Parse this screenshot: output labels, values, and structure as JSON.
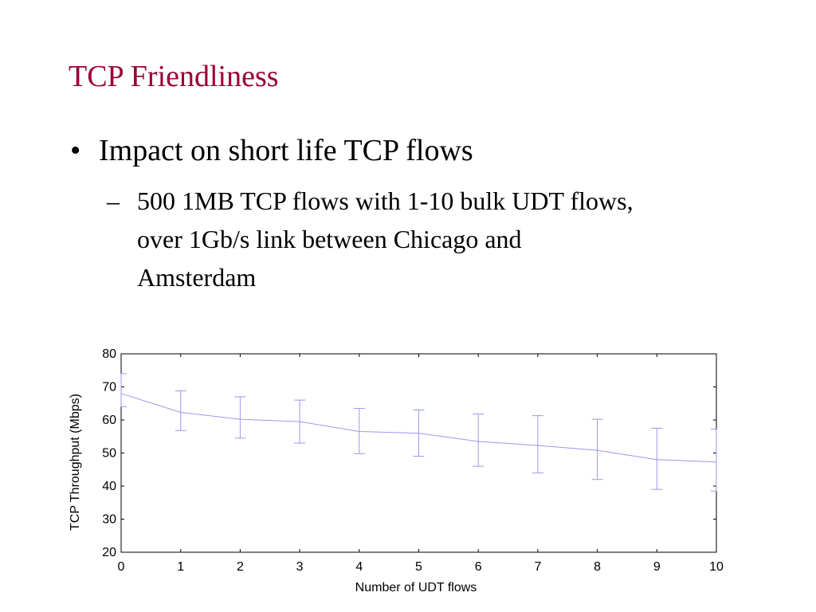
{
  "slide": {
    "title": "TCP Friendliness",
    "bullet_1": "Impact on short life TCP flows",
    "bullet_1_marker": "•",
    "bullet_2_marker": "–",
    "bullet_2_lines": [
      "500 1MB TCP flows with 1-10 bulk UDT flows,",
      "over 1Gb/s link between Chicago and",
      "Amsterdam"
    ]
  },
  "chart_data": {
    "type": "line",
    "title": "",
    "xlabel": "Number of UDT flows",
    "ylabel": "TCP Throughput (Mbps)",
    "xlim": [
      0,
      10
    ],
    "ylim": [
      20,
      80
    ],
    "x_ticks": [
      0,
      1,
      2,
      3,
      4,
      5,
      6,
      7,
      8,
      9,
      10
    ],
    "y_ticks": [
      20,
      30,
      40,
      50,
      60,
      70,
      80
    ],
    "grid": false,
    "series": [
      {
        "x": [
          0,
          1,
          2,
          3,
          4,
          5,
          6,
          7,
          8,
          9,
          10
        ],
        "values": [
          68,
          62.3,
          60.2,
          59.5,
          56.5,
          56,
          53.5,
          52.3,
          50.8,
          48,
          47.3
        ],
        "error_low": [
          64,
          56.8,
          54.5,
          53,
          49.8,
          49,
          46,
          44,
          42,
          39,
          38.5
        ],
        "error_high": [
          74,
          68.8,
          67,
          66,
          63.5,
          63,
          61.8,
          61.3,
          60.2,
          57.5,
          57.2
        ],
        "color": "#9999ee"
      }
    ]
  }
}
